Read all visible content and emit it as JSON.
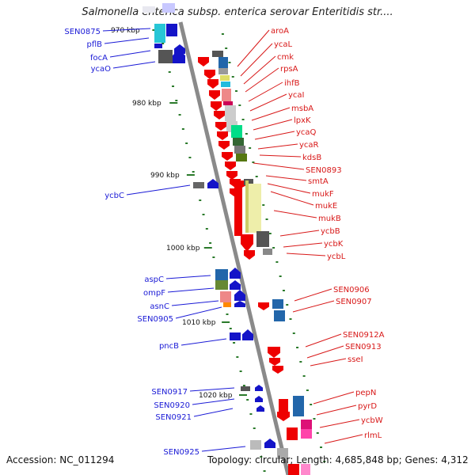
{
  "title": "Salmonella enterica subsp. enterica serovar Enteritidis str....",
  "footer": {
    "accession": "Accession: NC_011294",
    "summary": "Topology: circular; Length: 4,685,848 bp; Genes: 4,312"
  },
  "colors": {
    "left_label": "#1a1ad6",
    "right_label": "#d81818",
    "backbone": "#8a8a8a",
    "tick": "#2a7a2a"
  },
  "kbp_ticks": [
    {
      "label": "970 kbp"
    },
    {
      "label": "980 kbp"
    },
    {
      "label": "990 kbp"
    },
    {
      "label": "1000 kbp"
    },
    {
      "label": "1010 kbp"
    },
    {
      "label": "1020 kbp"
    }
  ],
  "left_genes": [
    {
      "label": "SEN0875"
    },
    {
      "label": "pflB"
    },
    {
      "label": "focA"
    },
    {
      "label": "ycaO"
    },
    {
      "label": "ycbC"
    },
    {
      "label": "aspC"
    },
    {
      "label": "ompF"
    },
    {
      "label": "asnC"
    },
    {
      "label": "SEN0905"
    },
    {
      "label": "pncB"
    },
    {
      "label": "SEN0917"
    },
    {
      "label": "SEN0920"
    },
    {
      "label": "SEN0921"
    },
    {
      "label": "SEN0925"
    }
  ],
  "right_genes": [
    {
      "label": "aroA"
    },
    {
      "label": "ycaL"
    },
    {
      "label": "cmk"
    },
    {
      "label": "rpsA"
    },
    {
      "label": "ihfB"
    },
    {
      "label": "ycaI"
    },
    {
      "label": "msbA"
    },
    {
      "label": "lpxK"
    },
    {
      "label": "ycaQ"
    },
    {
      "label": "ycaR"
    },
    {
      "label": "kdsB"
    },
    {
      "label": "SEN0893"
    },
    {
      "label": "smtA"
    },
    {
      "label": "mukF"
    },
    {
      "label": "mukE"
    },
    {
      "label": "mukB"
    },
    {
      "label": "ycbB"
    },
    {
      "label": "ycbK"
    },
    {
      "label": "ycbL"
    },
    {
      "label": "SEN0906"
    },
    {
      "label": "SEN0907"
    },
    {
      "label": "SEN0912A"
    },
    {
      "label": "SEN0913"
    },
    {
      "label": "sseI"
    },
    {
      "label": "pepN"
    },
    {
      "label": "pyrD"
    },
    {
      "label": "ycbW"
    },
    {
      "label": "rlmL"
    }
  ]
}
